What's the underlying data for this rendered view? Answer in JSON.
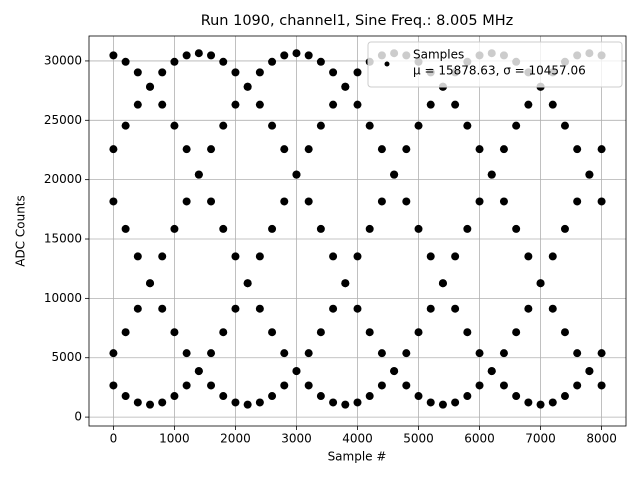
{
  "chart_data": {
    "type": "scatter",
    "title": "Run 1090, channel1, Sine Freq.: 8.005 MHz",
    "x_label": "Sample #",
    "y_label": "ADC Counts",
    "legend_stats": "μ = 15878.63, σ = 10457.06",
    "x": [
      0,
      200,
      400,
      600,
      800,
      1000,
      1200,
      1400,
      1600,
      1800,
      2000,
      2200,
      2400,
      2600,
      2800,
      3000,
      3200,
      3400,
      3600,
      3800,
      4000,
      4200,
      4400,
      4600,
      4800,
      5000,
      5200,
      5400,
      5600,
      5800,
      6000,
      6200,
      6400,
      6600,
      6800,
      7000,
      7200,
      7400,
      7600,
      7800,
      8000
    ],
    "series": [
      {
        "name": "Samples",
        "color": "#000000",
        "values": [
          30468,
          29926,
          29037,
          27824,
          26315,
          24549,
          22569,
          20424,
          18165,
          15850,
          13535,
          11277,
          9131,
          7151,
          5385,
          3877,
          2663,
          1774,
          1232,
          1050,
          1232,
          1774,
          2663,
          3877,
          5385,
          7151,
          9131,
          11277,
          13535,
          15850,
          18165,
          20424,
          22569,
          24549,
          26315,
          27824,
          29037,
          29926,
          30468,
          30650,
          30468
        ]
      },
      {
        "color": "#000000",
        "values": [
          22569,
          24549,
          26315,
          27824,
          29037,
          29926,
          30468,
          30650,
          30468,
          29926,
          29037,
          27824,
          26315,
          24549,
          22569,
          20424,
          18165,
          15850,
          13535,
          11277,
          9131,
          7151,
          5385,
          3877,
          2663,
          1774,
          1232,
          1050,
          1232,
          1774,
          2663,
          3877,
          5385,
          7151,
          9131,
          11277,
          13535,
          15850,
          18165,
          20424,
          22569
        ]
      },
      {
        "color": "#000000",
        "values": [
          5385,
          7151,
          9131,
          11277,
          13535,
          15850,
          18165,
          20424,
          22569,
          24549,
          26315,
          27824,
          29037,
          29926,
          30468,
          30650,
          30468,
          29926,
          29037,
          27824,
          26315,
          24549,
          22569,
          20424,
          18165,
          15850,
          13535,
          11277,
          9131,
          7151,
          5385,
          3877,
          2663,
          1774,
          1232,
          1050,
          1232,
          1774,
          2663,
          3877,
          5385
        ]
      },
      {
        "color": "#000000",
        "values": [
          2663,
          1774,
          1232,
          1050,
          1232,
          1774,
          2663,
          3877,
          5385,
          7151,
          9131,
          11277,
          13535,
          15850,
          18165,
          20424,
          22569,
          24549,
          26315,
          27824,
          29037,
          29926,
          30468,
          30650,
          30468,
          29926,
          29037,
          27824,
          26315,
          24549,
          22569,
          20424,
          18165,
          15850,
          13535,
          11277,
          9131,
          7151,
          5385,
          3877,
          2663
        ]
      },
      {
        "color": "#000000",
        "values": [
          18165,
          15850,
          13535,
          11277,
          9131,
          7151,
          5385,
          3877,
          2663,
          1774,
          1232,
          1050,
          1232,
          1774,
          2663,
          3877,
          5385,
          7151,
          9131,
          11277,
          13535,
          15850,
          18165,
          20424,
          22569,
          24549,
          26315,
          27824,
          29037,
          29926,
          30468,
          30650,
          30468,
          29926,
          29037,
          27824,
          26315,
          24549,
          22569,
          20424,
          18165
        ]
      }
    ],
    "xlim": [
      -400,
      8400
    ],
    "xticks": [
      0,
      1000,
      2000,
      3000,
      4000,
      5000,
      6000,
      7000,
      8000
    ],
    "ylim": [
      -750,
      32100
    ],
    "yticks": [
      0,
      5000,
      10000,
      15000,
      20000,
      25000,
      30000
    ],
    "grid": true,
    "legend_position": "upper right"
  }
}
